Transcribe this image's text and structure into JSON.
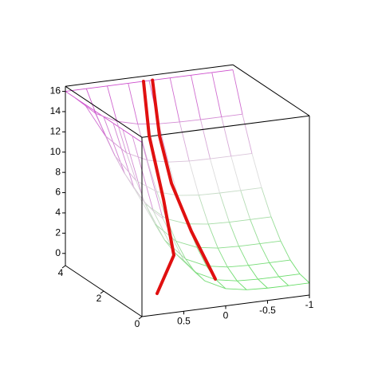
{
  "chart_data": {
    "type": "surface3d",
    "xlim": [
      1,
      -1
    ],
    "ylim": [
      0,
      4
    ],
    "zlim": [
      -1.2,
      16.5
    ],
    "xticks": [
      0.5,
      0,
      -0.5,
      -1
    ],
    "yticks": [
      0,
      2,
      4
    ],
    "zticks": [
      0,
      2,
      4,
      6,
      8,
      10,
      12,
      14,
      16
    ],
    "surface": {
      "x": [
        1,
        0.75,
        0.5,
        0.25,
        0,
        -0.25,
        -0.5,
        -0.75,
        -1
      ],
      "y": [
        0,
        0.5,
        1,
        1.5,
        2,
        2.5,
        3,
        3.5,
        4
      ],
      "z": [
        [
          16,
          8.21,
          3.8,
          1.53,
          0.5,
          0.12,
          0.02,
          0,
          0
        ],
        [
          16,
          8.33,
          3.99,
          1.75,
          0.74,
          0.37,
          0.27,
          0.25,
          0.25
        ],
        [
          16,
          8.69,
          4.56,
          2.43,
          1.47,
          1.11,
          1.01,
          1.0,
          1.0
        ],
        [
          16,
          9.3,
          5.51,
          3.56,
          2.68,
          2.35,
          2.26,
          2.25,
          2.25
        ],
        [
          16,
          10.16,
          6.85,
          5.14,
          4.37,
          4.09,
          4.01,
          4.0,
          4.0
        ],
        [
          16,
          11.25,
          8.56,
          7.18,
          6.55,
          6.32,
          6.26,
          6.25,
          6.25
        ],
        [
          16,
          12.59,
          10.66,
          9.67,
          9.22,
          9.05,
          9.01,
          9.0,
          9.0
        ],
        [
          16,
          14.17,
          13.14,
          12.61,
          12.37,
          12.28,
          12.25,
          12.25,
          12.25
        ],
        [
          16,
          16,
          16,
          16,
          16,
          16,
          16,
          16,
          16
        ]
      ],
      "colormap": [
        "#55dd55",
        "#dcdcdc",
        "#cc44cc"
      ]
    },
    "curves": [
      {
        "color": "#e01010",
        "x": [
          0.067,
          0.114,
          0.171,
          0.276,
          0.705
        ],
        "y": [
          4,
          3.5,
          2.5,
          1.5,
          0.5
        ],
        "z": [
          16,
          11.32,
          6.34,
          2.2,
          0.14
        ]
      },
      {
        "color": "#e01010",
        "x": [
          -0.04,
          0.105,
          0.19,
          0.067,
          -0.105
        ],
        "y": [
          4,
          3,
          2,
          1.5,
          1
        ],
        "z": [
          16,
          11.94,
          8.57,
          4.34,
          0.07
        ]
      }
    ]
  }
}
